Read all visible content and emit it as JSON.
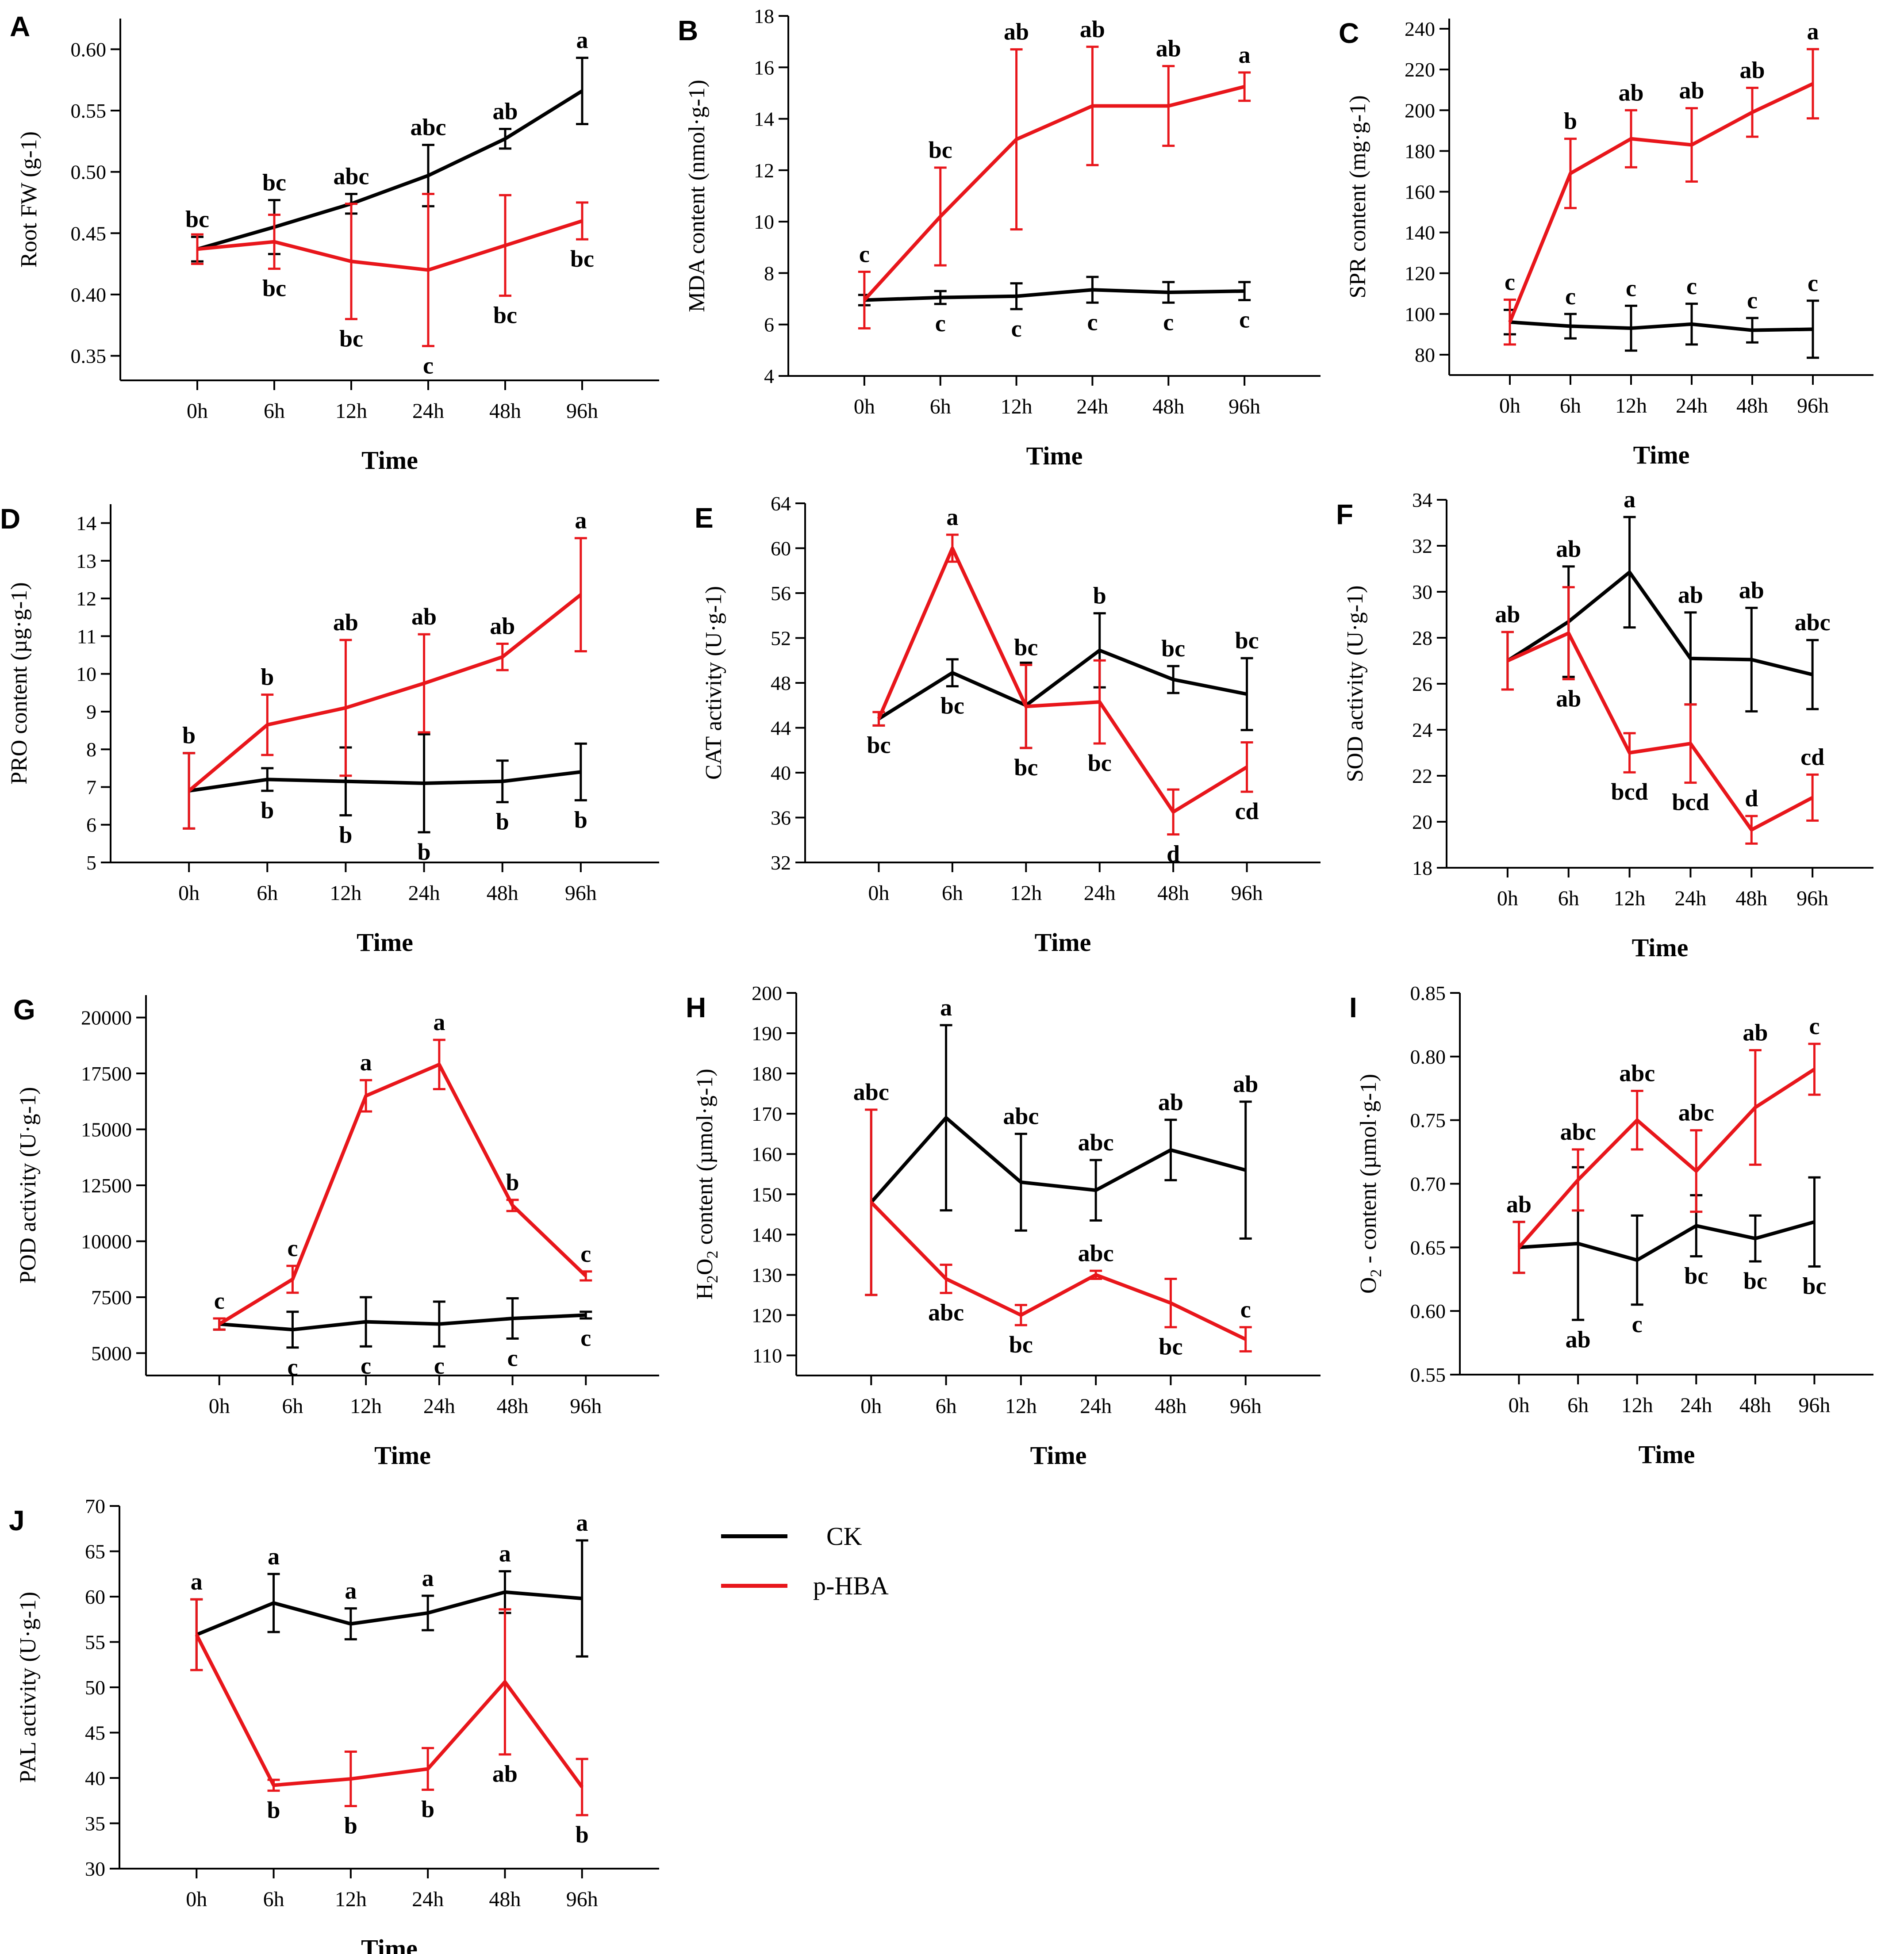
{
  "legend": {
    "ck": "CK",
    "phba": "p-HBA"
  },
  "colors": {
    "ck": "#000000",
    "phba": "#e8161b",
    "axis": "#000000"
  },
  "chart_data": [
    {
      "panel": "A",
      "type": "line",
      "xlabel": "Time",
      "ylabel": "Root FW (g-1)",
      "categories": [
        "0h",
        "6h",
        "12h",
        "24h",
        "48h",
        "96h"
      ],
      "ylim": [
        0.33,
        0.625
      ],
      "yticks": [
        0.35,
        0.4,
        0.45,
        0.5,
        0.55,
        0.6
      ],
      "ytick_labels": [
        "0.35",
        "0.40",
        "0.45",
        "0.50",
        "0.55",
        "0.60"
      ],
      "series": [
        {
          "name": "CK",
          "values": [
            0.437,
            0.455,
            0.474,
            0.497,
            0.527,
            0.566
          ],
          "errors": [
            0.01,
            0.022,
            0.008,
            0.025,
            0.008,
            0.027
          ],
          "letters": [
            "bc",
            "bc",
            "abc",
            "abc",
            "ab",
            "a"
          ],
          "letter_pos": [
            "above",
            "above",
            "above",
            "above",
            "above",
            "above"
          ]
        },
        {
          "name": "p-HBA",
          "values": [
            0.437,
            0.443,
            0.427,
            0.42,
            0.44,
            0.46
          ],
          "errors": [
            0.012,
            0.022,
            0.047,
            0.062,
            0.041,
            0.015
          ],
          "letters": [
            "",
            "bc",
            "bc",
            "c",
            "bc",
            "bc"
          ],
          "letter_pos": [
            "below",
            "below",
            "below",
            "below",
            "below",
            "below"
          ]
        }
      ]
    },
    {
      "panel": "B",
      "type": "line",
      "xlabel": "Time",
      "ylabel": "MDA content (nmol·g-1)",
      "categories": [
        "0h",
        "6h",
        "12h",
        "24h",
        "48h",
        "96h"
      ],
      "ylim": [
        4,
        18
      ],
      "yticks": [
        4,
        6,
        8,
        10,
        12,
        14,
        16,
        18
      ],
      "ytick_labels": [
        "4",
        "6",
        "8",
        "10",
        "12",
        "14",
        "16",
        "18"
      ],
      "series": [
        {
          "name": "CK",
          "values": [
            6.95,
            7.05,
            7.1,
            7.35,
            7.25,
            7.3
          ],
          "errors": [
            0.2,
            0.25,
            0.5,
            0.5,
            0.4,
            0.35
          ],
          "letters": [
            "",
            "c",
            "c",
            "c",
            "c",
            "c"
          ],
          "letter_pos": [
            "below",
            "below",
            "below",
            "below",
            "below",
            "below"
          ]
        },
        {
          "name": "p-HBA",
          "values": [
            6.95,
            10.2,
            13.2,
            14.5,
            14.5,
            15.25
          ],
          "errors": [
            1.1,
            1.9,
            3.5,
            2.3,
            1.55,
            0.55
          ],
          "letters": [
            "c",
            "bc",
            "ab",
            "ab",
            "ab",
            "a"
          ],
          "letter_pos": [
            "above",
            "above",
            "above",
            "above",
            "above",
            "above"
          ]
        }
      ]
    },
    {
      "panel": "C",
      "type": "line",
      "xlabel": "Time",
      "ylabel": "SPR content (mg·g-1)",
      "categories": [
        "0h",
        "6h",
        "12h",
        "24h",
        "48h",
        "96h"
      ],
      "ylim": [
        70,
        245
      ],
      "yticks": [
        80,
        100,
        120,
        140,
        160,
        180,
        200,
        220,
        240
      ],
      "ytick_labels": [
        "80",
        "100",
        "120",
        "140",
        "160",
        "180",
        "200",
        "220",
        "240"
      ],
      "series": [
        {
          "name": "CK",
          "values": [
            96,
            94,
            93,
            95,
            92,
            92.5
          ],
          "errors": [
            6,
            6,
            11,
            10,
            6,
            14
          ],
          "letters": [
            "",
            "c",
            "c",
            "c",
            "c",
            "c"
          ],
          "letter_pos": [
            "above",
            "above",
            "above",
            "above",
            "above",
            "above"
          ]
        },
        {
          "name": "p-HBA",
          "values": [
            96,
            169,
            186,
            183,
            199,
            213
          ],
          "errors": [
            11,
            17,
            14,
            18,
            12,
            17
          ],
          "letters": [
            "c",
            "b",
            "ab",
            "ab",
            "ab",
            "a"
          ],
          "letter_pos": [
            "above",
            "above",
            "above",
            "above",
            "above",
            "above"
          ]
        }
      ]
    },
    {
      "panel": "D",
      "type": "line",
      "xlabel": "Time",
      "ylabel": "PRO content (µg·g-1)",
      "categories": [
        "0h",
        "6h",
        "12h",
        "24h",
        "48h",
        "96h"
      ],
      "ylim": [
        5,
        14.5
      ],
      "yticks": [
        5,
        6,
        7,
        8,
        9,
        10,
        11,
        12,
        13,
        14
      ],
      "ytick_labels": [
        "5",
        "6",
        "7",
        "8",
        "9",
        "10",
        "11",
        "12",
        "13",
        "14"
      ],
      "series": [
        {
          "name": "CK",
          "values": [
            6.9,
            7.2,
            7.15,
            7.1,
            7.15,
            7.4
          ],
          "errors": [
            1.0,
            0.3,
            0.9,
            1.3,
            0.55,
            0.75
          ],
          "letters": [
            "",
            "b",
            "b",
            "b",
            "b",
            "b"
          ],
          "letter_pos": [
            "below",
            "below",
            "below",
            "below",
            "below",
            "below"
          ]
        },
        {
          "name": "p-HBA",
          "values": [
            6.9,
            8.65,
            9.1,
            9.75,
            10.45,
            12.1
          ],
          "errors": [
            1.0,
            0.8,
            1.8,
            1.3,
            0.35,
            1.5
          ],
          "letters": [
            "b",
            "b",
            "ab",
            "ab",
            "ab",
            "a"
          ],
          "letter_pos": [
            "above",
            "above",
            "above",
            "above",
            "above",
            "above"
          ]
        }
      ]
    },
    {
      "panel": "E",
      "type": "line",
      "xlabel": "Time",
      "ylabel": "CAT activity  (U·g-1)",
      "categories": [
        "0h",
        "6h",
        "12h",
        "24h",
        "48h",
        "96h"
      ],
      "ylim": [
        32,
        64
      ],
      "yticks": [
        32,
        36,
        40,
        44,
        48,
        52,
        56,
        60,
        64
      ],
      "ytick_labels": [
        "32",
        "36",
        "40",
        "44",
        "48",
        "52",
        "56",
        "60",
        "64"
      ],
      "series": [
        {
          "name": "CK",
          "values": [
            44.8,
            48.9,
            46.0,
            50.9,
            48.3,
            47.0
          ],
          "errors": [
            0.6,
            1.2,
            3.8,
            3.3,
            1.2,
            3.2
          ],
          "letters": [
            "bc",
            "bc",
            "bc",
            "b",
            "bc",
            "bc"
          ],
          "letter_pos": [
            "below",
            "below",
            "below",
            "above",
            "above",
            "above"
          ]
        },
        {
          "name": "p-HBA",
          "values": [
            44.8,
            60.0,
            45.9,
            46.3,
            36.5,
            40.5
          ],
          "errors": [
            0.6,
            1.2,
            3.7,
            3.7,
            2.0,
            2.2
          ],
          "letters": [
            "",
            "a",
            "bc",
            "bc",
            "d",
            "cd"
          ],
          "letter_pos": [
            "below",
            "above",
            "above",
            "below",
            "below",
            "below"
          ]
        }
      ]
    },
    {
      "panel": "F",
      "type": "line",
      "xlabel": "Time",
      "ylabel": "SOD activity  (U·g-1)",
      "categories": [
        "0h",
        "6h",
        "12h",
        "24h",
        "48h",
        "96h"
      ],
      "ylim": [
        18,
        34
      ],
      "yticks": [
        18,
        20,
        22,
        24,
        26,
        28,
        30,
        32,
        34
      ],
      "ytick_labels": [
        "18",
        "20",
        "22",
        "24",
        "26",
        "28",
        "30",
        "32",
        "34"
      ],
      "series": [
        {
          "name": "CK",
          "values": [
            27.0,
            28.7,
            30.85,
            27.1,
            27.05,
            26.4
          ],
          "errors": [
            1.25,
            2.4,
            2.4,
            2.0,
            2.25,
            1.5
          ],
          "letters": [
            "ab",
            "ab",
            "a",
            "ab",
            "ab",
            "abc"
          ],
          "letter_pos": [
            "above",
            "above",
            "above",
            "above",
            "above",
            "above"
          ]
        },
        {
          "name": "p-HBA",
          "values": [
            27.0,
            28.2,
            23.0,
            23.4,
            19.65,
            21.05
          ],
          "errors": [
            1.25,
            2.0,
            0.85,
            1.7,
            0.6,
            1.0
          ],
          "letters": [
            "",
            "ab",
            "bcd",
            "bcd",
            "d",
            "cd"
          ],
          "letter_pos": [
            "below",
            "below",
            "below",
            "below",
            "above",
            "above"
          ]
        }
      ]
    },
    {
      "panel": "G",
      "type": "line",
      "xlabel": "Time",
      "ylabel": "POD activity  (U·g-1)",
      "categories": [
        "0h",
        "6h",
        "12h",
        "24h",
        "48h",
        "96h"
      ],
      "ylim": [
        4000,
        21000
      ],
      "yticks": [
        5000,
        7500,
        10000,
        12500,
        15000,
        17500,
        20000
      ],
      "ytick_labels": [
        "5000",
        "7500",
        "10000",
        "12500",
        "15000",
        "17500",
        "20000"
      ],
      "series": [
        {
          "name": "CK",
          "values": [
            6300,
            6050,
            6400,
            6300,
            6550,
            6700
          ],
          "errors": [
            250,
            800,
            1100,
            1000,
            900,
            150
          ],
          "letters": [
            "",
            "c",
            "c",
            "c",
            "c",
            "c"
          ],
          "letter_pos": [
            "below",
            "below",
            "below",
            "below",
            "below",
            "below"
          ]
        },
        {
          "name": "p-HBA",
          "values": [
            6300,
            8300,
            16500,
            17900,
            11600,
            8450
          ],
          "errors": [
            250,
            600,
            700,
            1100,
            250,
            200
          ],
          "letters": [
            "c",
            "c",
            "a",
            "a",
            "b",
            "c"
          ],
          "letter_pos": [
            "above",
            "above",
            "above",
            "above",
            "above",
            "above"
          ]
        }
      ]
    },
    {
      "panel": "H",
      "type": "line",
      "xlabel": "Time",
      "ylabel": "H2O2  content (µmol·g-1)",
      "categories": [
        "0h",
        "6h",
        "12h",
        "24h",
        "48h",
        "96h"
      ],
      "ylim": [
        105,
        200
      ],
      "yticks": [
        110,
        120,
        130,
        140,
        150,
        160,
        170,
        180,
        190,
        200
      ],
      "ytick_labels": [
        "110",
        "120",
        "130",
        "140",
        "150",
        "160",
        "170",
        "180",
        "190",
        "200"
      ],
      "series": [
        {
          "name": "CK",
          "values": [
            148,
            169,
            153,
            151,
            161,
            156
          ],
          "errors": [
            23,
            23,
            12,
            7.5,
            7.5,
            17
          ],
          "letters": [
            "abc",
            "a",
            "abc",
            "abc",
            "ab",
            "ab"
          ],
          "letter_pos": [
            "above",
            "above",
            "above",
            "above",
            "above",
            "above"
          ]
        },
        {
          "name": "p-HBA",
          "values": [
            148,
            129,
            120,
            130,
            123,
            114
          ],
          "errors": [
            23,
            3.5,
            2.5,
            1,
            6,
            3
          ],
          "letters": [
            "",
            "abc",
            "bc",
            "abc",
            "bc",
            "c"
          ],
          "letter_pos": [
            "below",
            "below",
            "below",
            "above",
            "below",
            "above"
          ]
        }
      ]
    },
    {
      "panel": "I",
      "type": "line",
      "xlabel": "Time",
      "ylabel": "O2 - content (µmol·g-1)",
      "categories": [
        "0h",
        "6h",
        "12h",
        "24h",
        "48h",
        "96h"
      ],
      "ylim": [
        0.55,
        0.85
      ],
      "yticks": [
        0.55,
        0.6,
        0.65,
        0.7,
        0.75,
        0.8,
        0.85
      ],
      "ytick_labels": [
        "0.55",
        "0.60",
        "0.65",
        "0.70",
        "0.75",
        "0.80",
        "0.85"
      ],
      "series": [
        {
          "name": "CK",
          "values": [
            0.65,
            0.653,
            0.64,
            0.667,
            0.657,
            0.67
          ],
          "errors": [
            0.02,
            0.06,
            0.035,
            0.024,
            0.018,
            0.035
          ],
          "letters": [
            "ab",
            "ab",
            "c",
            "bc",
            "bc",
            "bc"
          ],
          "letter_pos": [
            "above",
            "below",
            "below",
            "below",
            "below",
            "below"
          ]
        },
        {
          "name": "p-HBA",
          "values": [
            0.65,
            0.703,
            0.75,
            0.71,
            0.76,
            0.79
          ],
          "errors": [
            0.02,
            0.024,
            0.023,
            0.032,
            0.045,
            0.02
          ],
          "letters": [
            "",
            "abc",
            "abc",
            "abc",
            "ab",
            "c"
          ],
          "letter_pos": [
            "above",
            "above",
            "above",
            "above",
            "above",
            "above"
          ]
        }
      ]
    },
    {
      "panel": "J",
      "type": "line",
      "xlabel": "Time",
      "ylabel": "PAL activity  (U·g-1)",
      "categories": [
        "0h",
        "6h",
        "12h",
        "24h",
        "48h",
        "96h"
      ],
      "ylim": [
        30,
        70
      ],
      "yticks": [
        30,
        35,
        40,
        45,
        50,
        55,
        60,
        65,
        70
      ],
      "ytick_labels": [
        "30",
        "35",
        "40",
        "45",
        "50",
        "55",
        "60",
        "65",
        "70"
      ],
      "series": [
        {
          "name": "CK",
          "values": [
            55.8,
            59.3,
            57.0,
            58.2,
            60.5,
            59.8
          ],
          "errors": [
            3.9,
            3.2,
            1.7,
            1.9,
            2.3,
            6.4
          ],
          "letters": [
            "a",
            "a",
            "a",
            "a",
            "a",
            "a"
          ],
          "letter_pos": [
            "above",
            "above",
            "above",
            "above",
            "above",
            "above"
          ]
        },
        {
          "name": "p-HBA",
          "values": [
            55.8,
            39.2,
            39.9,
            41.0,
            50.6,
            39.0
          ],
          "errors": [
            3.9,
            0.6,
            3.0,
            2.3,
            8.0,
            3.1
          ],
          "letters": [
            "",
            "b",
            "b",
            "b",
            "ab",
            "b"
          ],
          "letter_pos": [
            "below",
            "below",
            "below",
            "below",
            "below",
            "below"
          ]
        }
      ]
    }
  ]
}
